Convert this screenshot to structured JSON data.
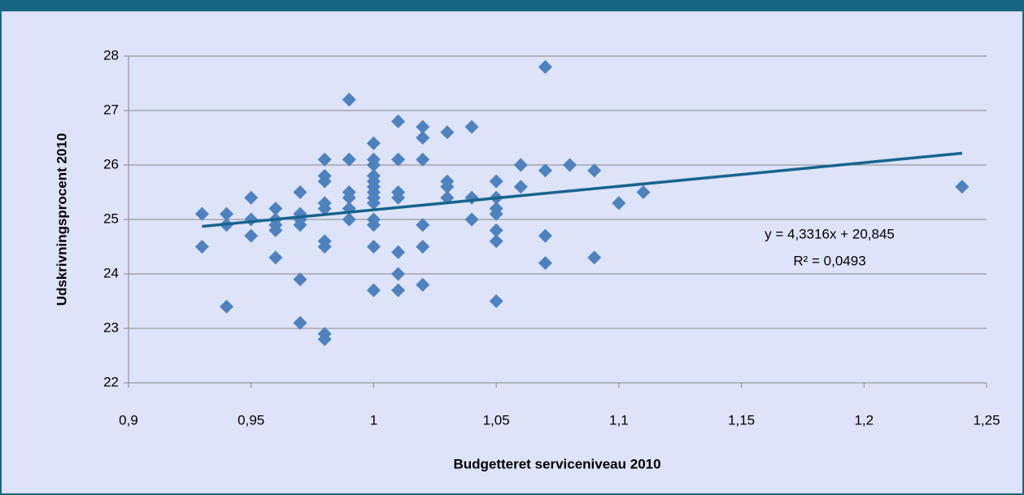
{
  "chart_data": {
    "type": "scatter",
    "x_label": "Budgetteret serviceniveau 2010",
    "y_label": "Udskrivningsprocent 2010",
    "xlim": [
      0.9,
      1.25
    ],
    "ylim": [
      22,
      28
    ],
    "xticks": [
      {
        "value": 0.9,
        "label": "0,9"
      },
      {
        "value": 0.95,
        "label": "0,95"
      },
      1,
      {
        "value": 1.05,
        "label": "1,05"
      },
      {
        "value": 1.1,
        "label": "1,1"
      },
      {
        "value": 1.15,
        "label": "1,15"
      },
      {
        "value": 1.2,
        "label": "1,2"
      },
      {
        "value": 1.25,
        "label": "1,25"
      }
    ],
    "yticks": [
      22,
      23,
      24,
      25,
      26,
      27,
      28
    ],
    "grid": true,
    "series": [
      {
        "color": "#4f81bd",
        "x": [
          0.93,
          0.93,
          0.94,
          0.94,
          0.94,
          0.95,
          0.95,
          0.95,
          0.96,
          0.96,
          0.96,
          0.96,
          0.96,
          0.97,
          0.97,
          0.97,
          0.97,
          0.97,
          0.97,
          0.98,
          0.98,
          0.98,
          0.98,
          0.98,
          0.98,
          0.98,
          0.98,
          0.98,
          0.99,
          0.99,
          0.99,
          0.99,
          0.99,
          0.99,
          1,
          1,
          1,
          1,
          1,
          1,
          1,
          1,
          1,
          1,
          1,
          1,
          1,
          1.01,
          1.01,
          1.01,
          1.01,
          1.01,
          1.01,
          1.01,
          1.02,
          1.02,
          1.02,
          1.02,
          1.02,
          1.02,
          1.03,
          1.03,
          1.03,
          1.03,
          1.04,
          1.04,
          1.04,
          1.05,
          1.05,
          1.05,
          1.05,
          1.05,
          1.05,
          1.05,
          1.06,
          1.06,
          1.07,
          1.07,
          1.07,
          1.07,
          1.08,
          1.09,
          1.09,
          1.1,
          1.11,
          1.24
        ],
        "values": [
          25.1,
          24.5,
          25.1,
          24.9,
          23.4,
          25.4,
          25.0,
          24.7,
          25.2,
          25.0,
          24.9,
          24.8,
          24.3,
          25.5,
          25.1,
          25.0,
          24.9,
          23.9,
          23.1,
          26.1,
          25.8,
          25.7,
          25.3,
          25.2,
          24.6,
          24.5,
          22.9,
          22.8,
          27.2,
          26.1,
          25.5,
          25.4,
          25.2,
          25.0,
          26.4,
          26.1,
          26.0,
          25.8,
          25.7,
          25.6,
          25.5,
          25.4,
          25.3,
          25.0,
          24.9,
          24.5,
          23.7,
          26.8,
          26.1,
          25.5,
          25.4,
          24.4,
          24.0,
          23.7,
          26.7,
          26.5,
          26.1,
          24.9,
          24.5,
          23.8,
          26.6,
          25.7,
          25.6,
          25.4,
          26.7,
          25.4,
          25.0,
          25.7,
          25.4,
          25.2,
          25.1,
          24.8,
          24.6,
          23.5,
          26.0,
          25.6,
          27.8,
          25.9,
          24.7,
          24.2,
          26.0,
          25.9,
          24.3,
          25.3,
          25.5,
          25.6
        ]
      }
    ],
    "trendline": {
      "color": "#17648d",
      "x": [
        0.93,
        1.24
      ],
      "values": [
        24.873,
        26.216
      ]
    },
    "annotations": [
      "y = 4,3316x + 20,845",
      "R² = 0,0493"
    ]
  }
}
